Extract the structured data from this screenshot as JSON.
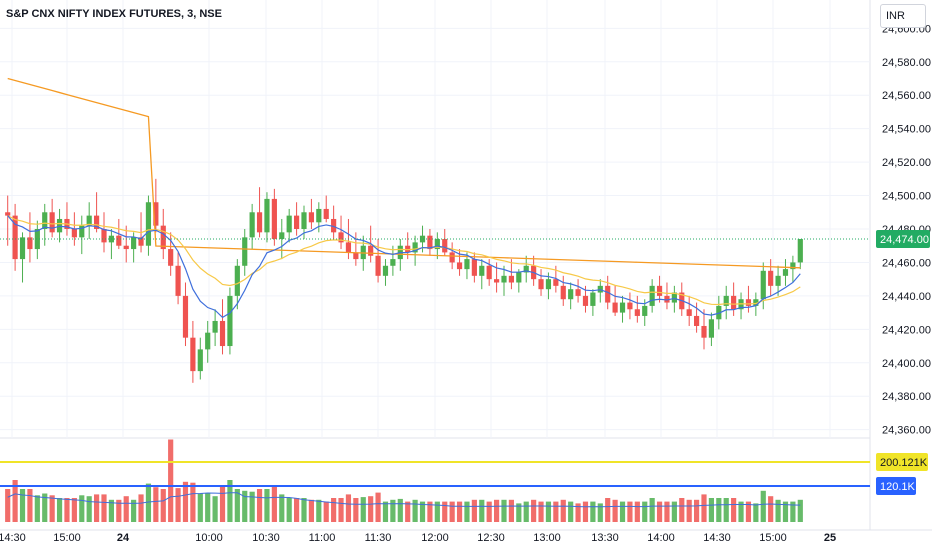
{
  "header": {
    "title": "S&P CNX NIFTY INDEX FUTURES, 3, NSE",
    "currency": "INR"
  },
  "colors": {
    "up": "#4caf50",
    "down": "#ef5350",
    "ema_fast": "#3f6fdc",
    "ema_slow": "#f7c948",
    "vwap": "#f59a23",
    "vol_line": "#3f6fdc",
    "last_price_bg": "#22ab63",
    "vol_high_bg": "#f0e428",
    "vol_ma_bg": "#2962ff"
  },
  "chart_data": {
    "type": "candlestick",
    "y_axis": {
      "ticks": [
        "24,600.00",
        "24,580.00",
        "24,560.00",
        "24,540.00",
        "24,520.00",
        "24,500.00",
        "24,480.00",
        "24,460.00",
        "24,440.00",
        "24,420.00",
        "24,400.00",
        "24,380.00",
        "24,360.00"
      ],
      "ylim": [
        24355,
        24605
      ]
    },
    "x_axis": {
      "ticks": [
        "14:30",
        "15:00",
        "24",
        "10:00",
        "10:30",
        "11:00",
        "11:30",
        "12:00",
        "12:30",
        "13:00",
        "13:30",
        "14:00",
        "14:30",
        "15:00",
        "25"
      ]
    },
    "last_price": {
      "label": "24,474.00",
      "value": 24474
    },
    "volume_labels": {
      "high": "200.121K",
      "ma": "120.1K"
    },
    "ohlc": [
      [
        24490,
        24500,
        24470,
        24488
      ],
      [
        24488,
        24495,
        24455,
        24462
      ],
      [
        24462,
        24478,
        24448,
        24475
      ],
      [
        24475,
        24490,
        24460,
        24468
      ],
      [
        24468,
        24485,
        24462,
        24480
      ],
      [
        24480,
        24495,
        24470,
        24490
      ],
      [
        24490,
        24498,
        24475,
        24478
      ],
      [
        24478,
        24492,
        24472,
        24486
      ],
      [
        24486,
        24496,
        24476,
        24480
      ],
      [
        24480,
        24490,
        24470,
        24475
      ],
      [
        24475,
        24488,
        24465,
        24482
      ],
      [
        24482,
        24496,
        24474,
        24488
      ],
      [
        24488,
        24502,
        24478,
        24480
      ],
      [
        24480,
        24490,
        24466,
        24472
      ],
      [
        24472,
        24480,
        24462,
        24476
      ],
      [
        24476,
        24486,
        24468,
        24470
      ],
      [
        24470,
        24482,
        24460,
        24468
      ],
      [
        24468,
        24478,
        24460,
        24475
      ],
      [
        24475,
        24490,
        24466,
        24470
      ],
      [
        24470,
        24500,
        24464,
        24496
      ],
      [
        24496,
        24510,
        24478,
        24482
      ],
      [
        24482,
        24492,
        24462,
        24468
      ],
      [
        24468,
        24478,
        24452,
        24458
      ],
      [
        24458,
        24466,
        24435,
        24440
      ],
      [
        24440,
        24448,
        24410,
        24415
      ],
      [
        24415,
        24425,
        24388,
        24395
      ],
      [
        24395,
        24415,
        24390,
        24408
      ],
      [
        24408,
        24425,
        24400,
        24418
      ],
      [
        24418,
        24432,
        24410,
        24425
      ],
      [
        24425,
        24438,
        24405,
        24410
      ],
      [
        24410,
        24445,
        24405,
        24440
      ],
      [
        24440,
        24462,
        24432,
        24458
      ],
      [
        24458,
        24480,
        24452,
        24475
      ],
      [
        24475,
        24495,
        24468,
        24490
      ],
      [
        24490,
        24505,
        24475,
        24478
      ],
      [
        24478,
        24502,
        24472,
        24498
      ],
      [
        24498,
        24504,
        24470,
        24474
      ],
      [
        24474,
        24486,
        24462,
        24478
      ],
      [
        24478,
        24492,
        24472,
        24488
      ],
      [
        24488,
        24496,
        24476,
        24480
      ],
      [
        24480,
        24494,
        24474,
        24490
      ],
      [
        24490,
        24498,
        24480,
        24484
      ],
      [
        24484,
        24496,
        24478,
        24492
      ],
      [
        24492,
        24500,
        24484,
        24486
      ],
      [
        24486,
        24494,
        24474,
        24478
      ],
      [
        24478,
        24488,
        24468,
        24472
      ],
      [
        24472,
        24486,
        24462,
        24466
      ],
      [
        24466,
        24478,
        24458,
        24462
      ],
      [
        24462,
        24476,
        24455,
        24470
      ],
      [
        24470,
        24482,
        24460,
        24464
      ],
      [
        24464,
        24474,
        24448,
        24452
      ],
      [
        24452,
        24462,
        24446,
        24458
      ],
      [
        24458,
        24470,
        24452,
        24462
      ],
      [
        24462,
        24474,
        24455,
        24470
      ],
      [
        24470,
        24478,
        24462,
        24466
      ],
      [
        24466,
        24476,
        24458,
        24472
      ],
      [
        24472,
        24482,
        24466,
        24476
      ],
      [
        24476,
        24480,
        24464,
        24468
      ],
      [
        24468,
        24478,
        24462,
        24474
      ],
      [
        24474,
        24480,
        24464,
        24466
      ],
      [
        24466,
        24472,
        24456,
        24460
      ],
      [
        24460,
        24468,
        24452,
        24456
      ],
      [
        24456,
        24466,
        24450,
        24462
      ],
      [
        24462,
        24466,
        24448,
        24452
      ],
      [
        24452,
        24462,
        24444,
        24458
      ],
      [
        24458,
        24462,
        24446,
        24450
      ],
      [
        24450,
        24460,
        24442,
        24448
      ],
      [
        24448,
        24458,
        24440,
        24452
      ],
      [
        24452,
        24462,
        24444,
        24448
      ],
      [
        24448,
        24456,
        24442,
        24454
      ],
      [
        24454,
        24464,
        24448,
        24458
      ],
      [
        24458,
        24464,
        24446,
        24450
      ],
      [
        24450,
        24456,
        24440,
        24444
      ],
      [
        24444,
        24454,
        24438,
        24450
      ],
      [
        24450,
        24458,
        24442,
        24446
      ],
      [
        24446,
        24452,
        24434,
        24438
      ],
      [
        24438,
        24448,
        24432,
        24444
      ],
      [
        24444,
        24450,
        24436,
        24440
      ],
      [
        24440,
        24446,
        24430,
        24434
      ],
      [
        24434,
        24444,
        24428,
        24442
      ],
      [
        24442,
        24450,
        24436,
        24446
      ],
      [
        24446,
        24452,
        24432,
        24436
      ],
      [
        24436,
        24446,
        24428,
        24430
      ],
      [
        24430,
        24440,
        24424,
        24436
      ],
      [
        24436,
        24442,
        24426,
        24432
      ],
      [
        24432,
        24440,
        24424,
        24428
      ],
      [
        24428,
        24438,
        24422,
        24434
      ],
      [
        24434,
        24450,
        24430,
        24446
      ],
      [
        24446,
        24452,
        24436,
        24440
      ],
      [
        24440,
        24448,
        24432,
        24436
      ],
      [
        24436,
        24446,
        24430,
        24442
      ],
      [
        24442,
        24448,
        24428,
        24432
      ],
      [
        24432,
        24440,
        24422,
        24428
      ],
      [
        24428,
        24436,
        24418,
        24422
      ],
      [
        24422,
        24432,
        24408,
        24415
      ],
      [
        24415,
        24430,
        24410,
        24426
      ],
      [
        24426,
        24440,
        24420,
        24434
      ],
      [
        24434,
        24446,
        24426,
        24440
      ],
      [
        24440,
        24448,
        24428,
        24432
      ],
      [
        24432,
        24442,
        24426,
        24438
      ],
      [
        24438,
        24446,
        24430,
        24434
      ],
      [
        24434,
        24442,
        24428,
        24438
      ],
      [
        24438,
        24460,
        24432,
        24455
      ],
      [
        24455,
        24462,
        24440,
        24446
      ],
      [
        24446,
        24458,
        24440,
        24452
      ],
      [
        24452,
        24462,
        24446,
        24456
      ],
      [
        24456,
        24464,
        24448,
        24460
      ],
      [
        24460,
        24474,
        24456,
        24474
      ]
    ],
    "volume_high_value": 200.121,
    "volume_ma_value": 120.1
  }
}
